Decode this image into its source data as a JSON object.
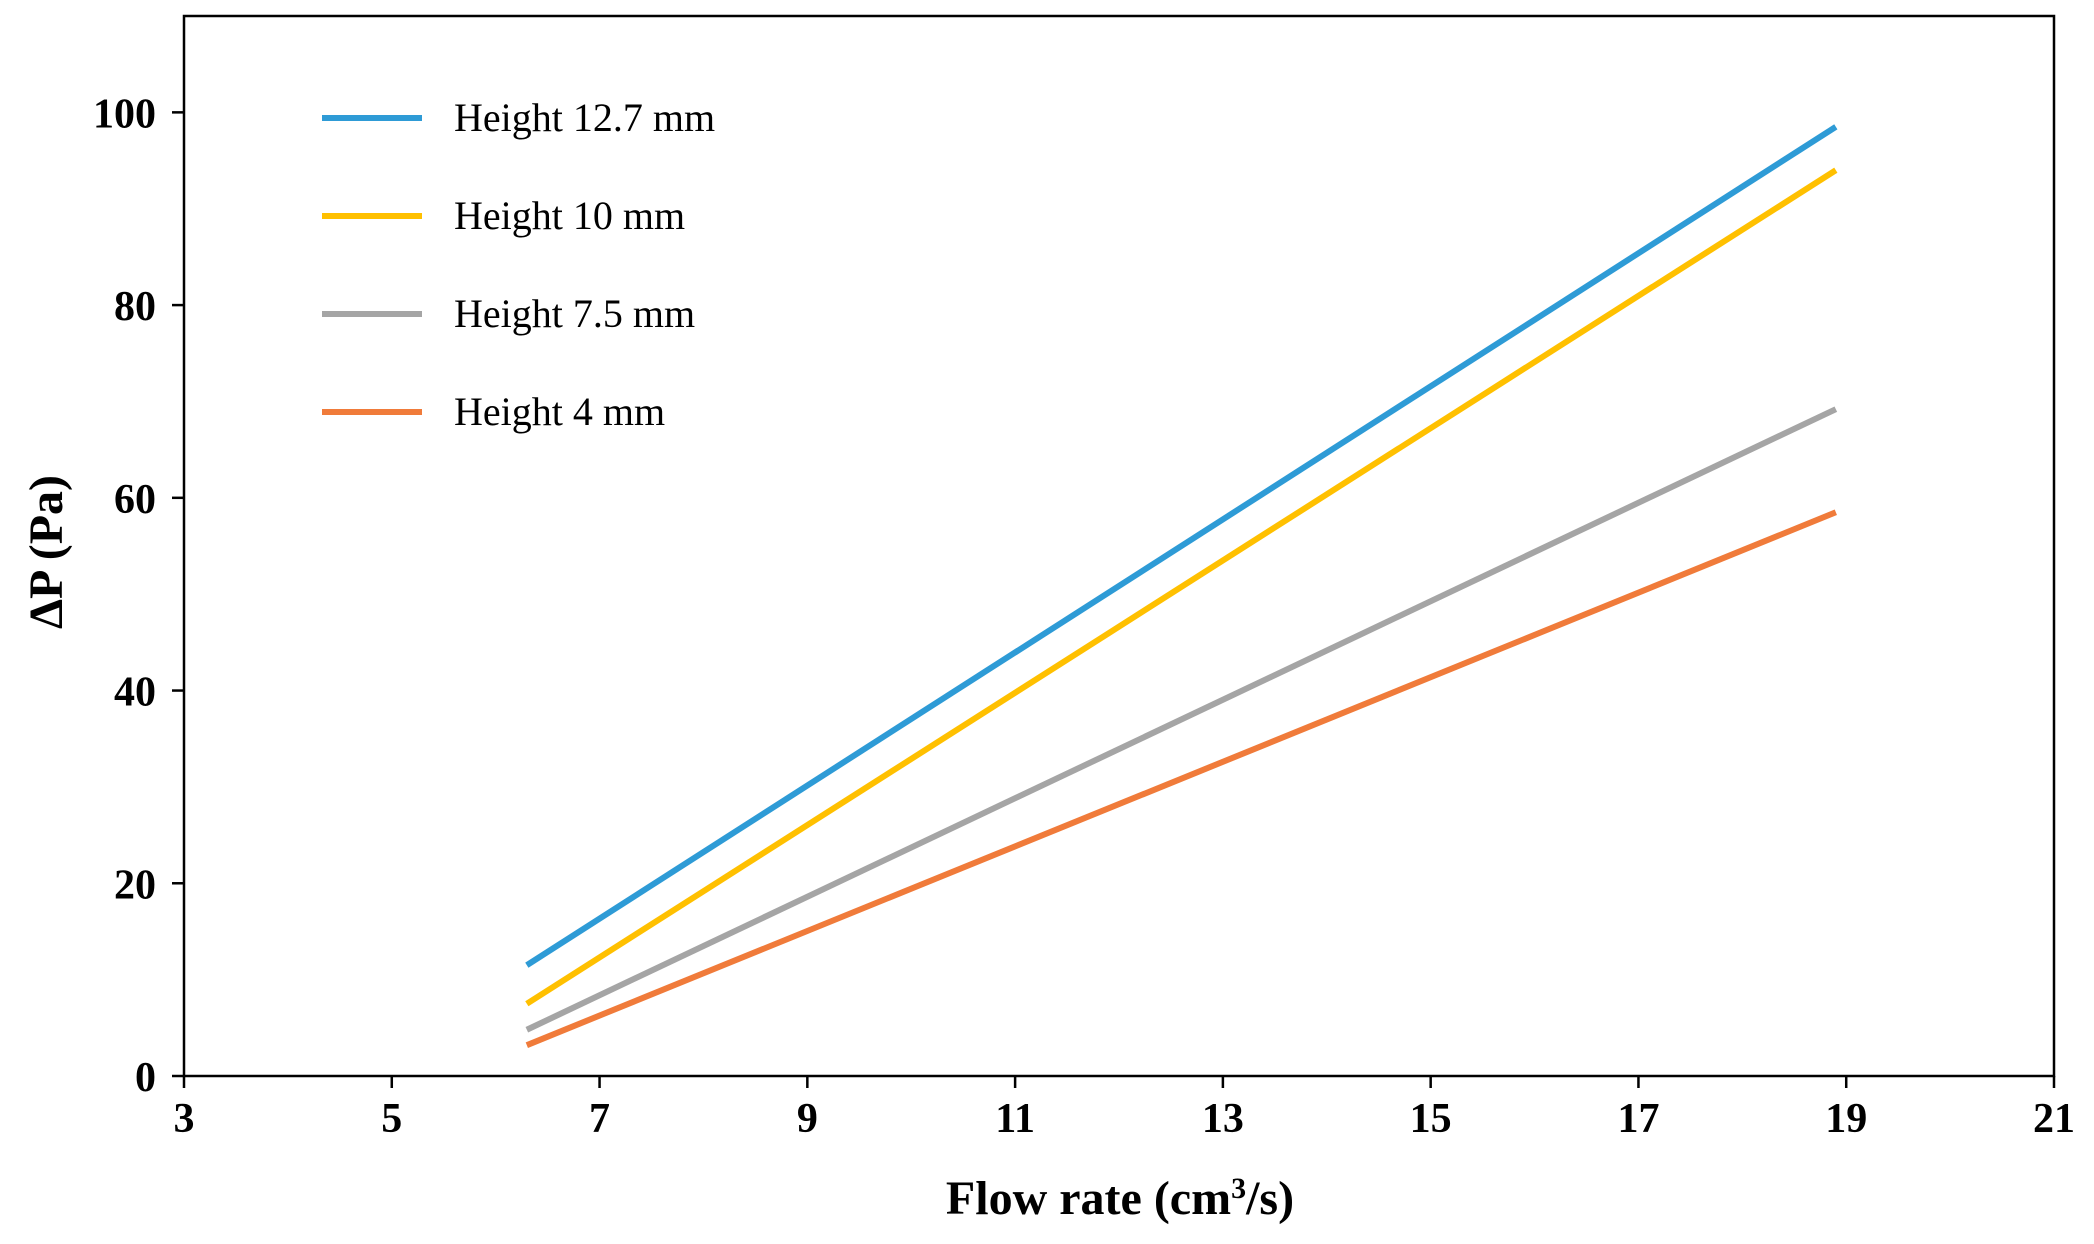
{
  "chart_data": {
    "type": "line",
    "title": "",
    "xlabel_main": "Flow rate (cm",
    "xlabel_sup": "3",
    "xlabel_tail": "/s)",
    "ylabel": "ΔP (Pa)",
    "xlim": [
      3,
      21
    ],
    "ylim": [
      0,
      110
    ],
    "xticks": [
      3,
      5,
      7,
      9,
      11,
      13,
      15,
      17,
      19,
      21
    ],
    "yticks": [
      0,
      20,
      40,
      60,
      80,
      100
    ],
    "grid": false,
    "legend_position": "top-left",
    "series": [
      {
        "name": "Height 12.7 mm",
        "color": "#2E9BD6",
        "x": [
          6.3,
          18.9
        ],
        "y": [
          11.5,
          98.5
        ]
      },
      {
        "name": "Height 10 mm",
        "color": "#FFC000",
        "x": [
          6.3,
          18.9
        ],
        "y": [
          7.5,
          94
        ]
      },
      {
        "name": "Height 7.5 mm",
        "color": "#A5A5A5",
        "x": [
          6.3,
          18.9
        ],
        "y": [
          4.8,
          69.2
        ]
      },
      {
        "name": "Height 4 mm",
        "color": "#F07B3A",
        "x": [
          6.3,
          18.9
        ],
        "y": [
          3.2,
          58.5
        ]
      }
    ]
  }
}
